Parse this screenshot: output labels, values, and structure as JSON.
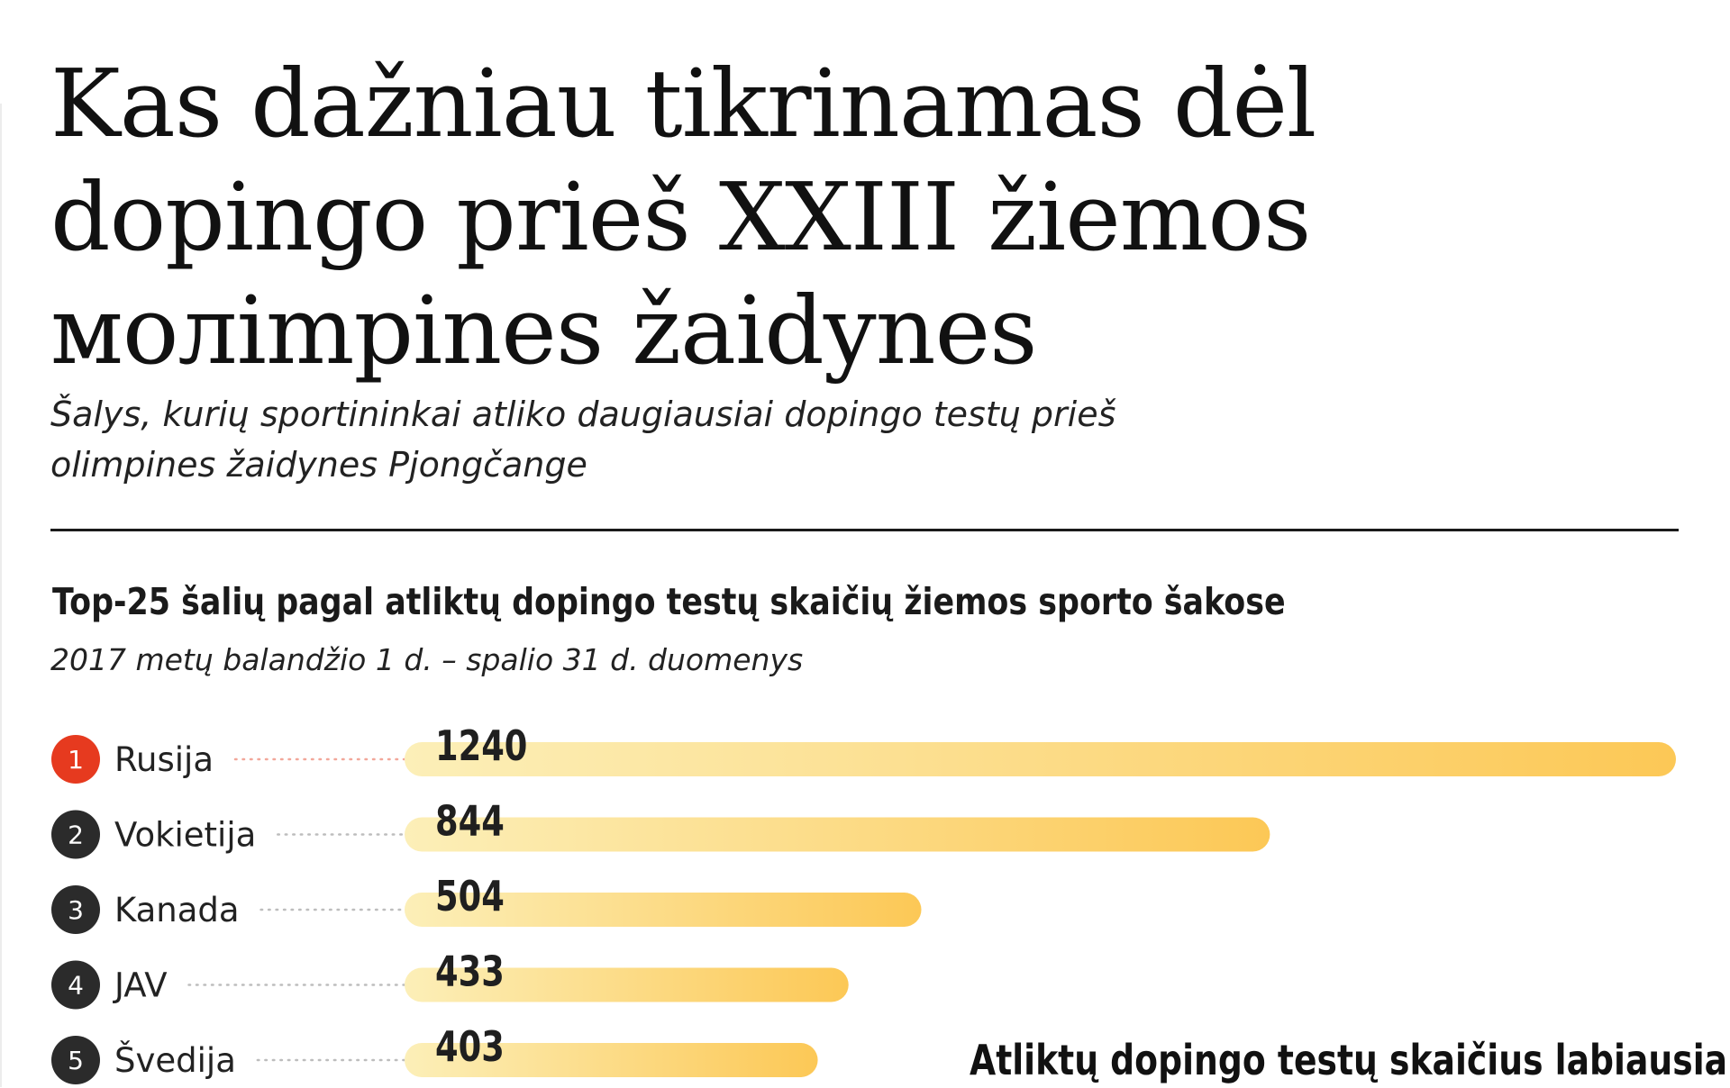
{
  "header": {
    "title": "Kas dažniau tikrinamas dėl dopingo prieš XXIII žiemos молimpines žaidynes",
    "subtitle": "Šalys, kurių sportininkai atliko daugiausiai dopingo testų prieš olimpines žaidynes Pjongčange"
  },
  "chart_data": {
    "type": "bar",
    "orientation": "horizontal",
    "title": "Top-25 šalių pagal atliktų dopingo testų skaičių žiemos sporto šakose",
    "subtitle": "2017 metų balandžio 1 d. – spalio 31 d. duomenys",
    "categories": [
      "Rusija",
      "Vokietija",
      "Kanada",
      "JAV",
      "Švedija"
    ],
    "ranks": [
      "1",
      "2",
      "3",
      "4",
      "5"
    ],
    "values": [
      1240,
      844,
      504,
      433,
      403
    ],
    "value_labels": [
      "1240",
      "844",
      "504",
      "433",
      "403"
    ],
    "xlim": [
      0,
      1240
    ],
    "grid": false,
    "legend": "none",
    "colors": {
      "bar_start": "#fcefb8",
      "bar_end": "#fcc856",
      "rank_highlight": "#e63a1f",
      "rank_default": "#2b2b2b",
      "leader_dots": "#bdbdbd",
      "leader_dots_highlight": "#f2a79a"
    }
  },
  "secondary_chart": {
    "title": "Atliktų dopingo testų skaičius labiausiai"
  }
}
